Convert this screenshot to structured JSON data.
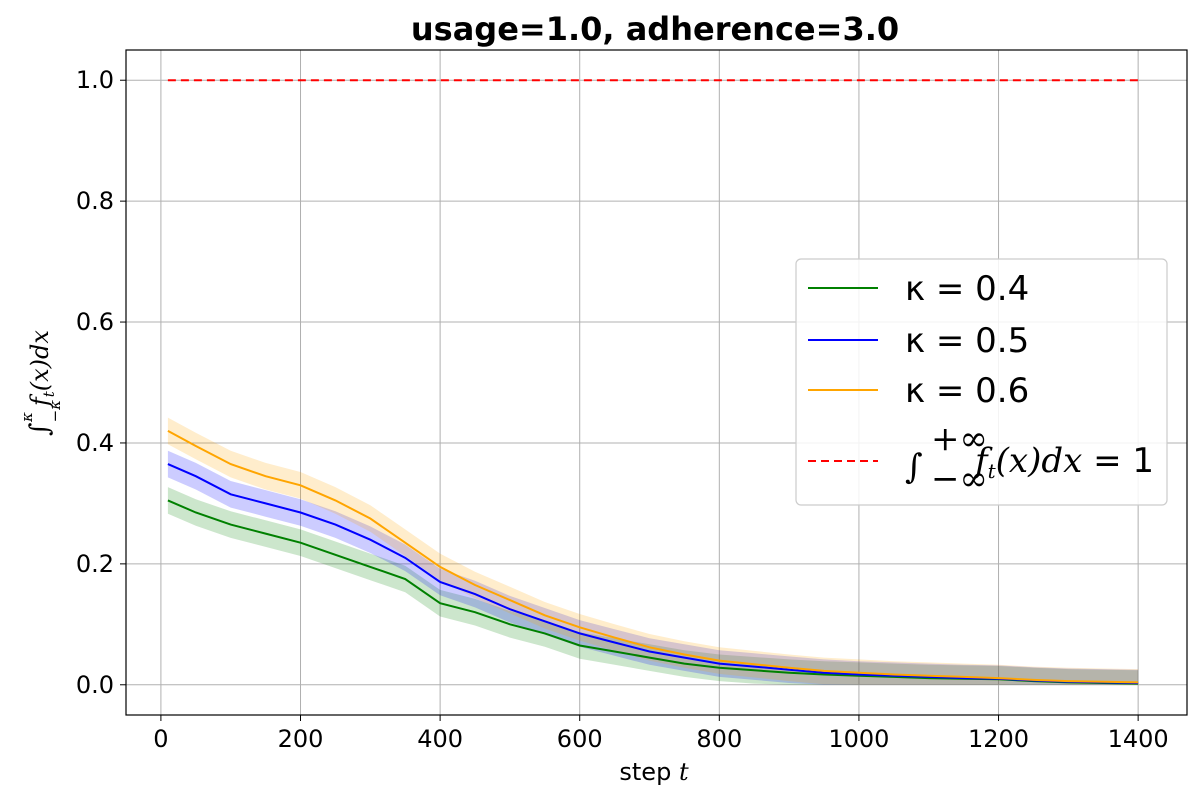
{
  "chart_data": {
    "type": "line",
    "title": "usage=1.0, adherence=3.0",
    "xlabel_prefix": "step ",
    "xlabel_var": "t",
    "ylabel": "∫_{−κ}^{κ} f_t(x)dx",
    "xlim": [
      -50,
      1470
    ],
    "ylim": [
      -0.05,
      1.05
    ],
    "xticks": [
      0,
      200,
      400,
      600,
      800,
      1000,
      1200,
      1400
    ],
    "yticks": [
      0.0,
      0.2,
      0.4,
      0.6,
      0.8,
      1.0
    ],
    "xtick_labels": [
      "0",
      "200",
      "400",
      "600",
      "800",
      "1000",
      "1200",
      "1400"
    ],
    "ytick_labels": [
      "0.0",
      "0.2",
      "0.4",
      "0.6",
      "0.8",
      "1.0"
    ],
    "grid": true,
    "legend_position": "center-right",
    "x": [
      10,
      50,
      100,
      150,
      200,
      250,
      300,
      350,
      400,
      450,
      500,
      550,
      600,
      650,
      700,
      750,
      800,
      850,
      900,
      950,
      1000,
      1050,
      1100,
      1150,
      1200,
      1250,
      1300,
      1350,
      1400
    ],
    "series": [
      {
        "name": "κ = 0.4",
        "color": "#008000",
        "values": [
          0.305,
          0.285,
          0.265,
          0.25,
          0.235,
          0.215,
          0.195,
          0.175,
          0.135,
          0.12,
          0.1,
          0.085,
          0.065,
          0.055,
          0.045,
          0.035,
          0.028,
          0.024,
          0.02,
          0.017,
          0.015,
          0.013,
          0.011,
          0.01,
          0.009,
          0.006,
          0.004,
          0.003,
          0.002
        ],
        "band": 0.022
      },
      {
        "name": "κ = 0.5",
        "color": "#0000ff",
        "values": [
          0.365,
          0.345,
          0.315,
          0.3,
          0.285,
          0.265,
          0.24,
          0.21,
          0.17,
          0.15,
          0.125,
          0.105,
          0.085,
          0.07,
          0.055,
          0.045,
          0.035,
          0.03,
          0.025,
          0.02,
          0.017,
          0.015,
          0.013,
          0.011,
          0.01,
          0.007,
          0.005,
          0.004,
          0.003
        ],
        "band": 0.022
      },
      {
        "name": "κ = 0.6",
        "color": "#ffa500",
        "values": [
          0.42,
          0.395,
          0.365,
          0.345,
          0.33,
          0.305,
          0.275,
          0.235,
          0.195,
          0.165,
          0.14,
          0.115,
          0.095,
          0.078,
          0.062,
          0.05,
          0.04,
          0.034,
          0.028,
          0.023,
          0.02,
          0.017,
          0.015,
          0.013,
          0.011,
          0.008,
          0.006,
          0.005,
          0.004
        ],
        "band": 0.022
      }
    ],
    "reference_line": {
      "name": "∫_{−∞}^{+∞} f_t(x)dx = 1",
      "color": "#ff0000",
      "y": 1.0,
      "x_range": [
        10,
        1400
      ]
    }
  }
}
